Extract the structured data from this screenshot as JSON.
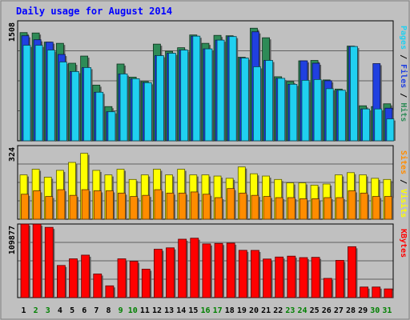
{
  "chart_data": [
    {
      "type": "bar",
      "title": "Daily usage for August 2014",
      "ylabel": "Pages / Files / Hits",
      "y_tick_label": "1508",
      "ylim": [
        0,
        1508
      ],
      "categories": [
        "1",
        "2",
        "3",
        "4",
        "5",
        "6",
        "7",
        "8",
        "9",
        "10",
        "11",
        "12",
        "13",
        "14",
        "15",
        "16",
        "17",
        "18",
        "19",
        "20",
        "21",
        "22",
        "23",
        "24",
        "25",
        "26",
        "27",
        "28",
        "29",
        "30",
        "31"
      ],
      "weekend_days": [
        "2",
        "3",
        "9",
        "10",
        "16",
        "17",
        "23",
        "24",
        "30",
        "31"
      ],
      "series": [
        {
          "name": "Hits",
          "color": "#2e8b57",
          "values": [
            1360,
            1355,
            1240,
            1225,
            975,
            1065,
            700,
            430,
            965,
            800,
            745,
            1215,
            1125,
            1170,
            1330,
            1225,
            1325,
            1320,
            1050,
            1415,
            1295,
            805,
            745,
            1005,
            1010,
            765,
            650,
            1190,
            440,
            430,
            465
          ]
        },
        {
          "name": "Files",
          "color": "#2040e0",
          "values": [
            1320,
            1270,
            1240,
            1085,
            870,
            920,
            610,
            365,
            840,
            780,
            730,
            1070,
            1100,
            1140,
            1315,
            1155,
            1265,
            1310,
            1040,
            1370,
            1010,
            785,
            710,
            1005,
            975,
            755,
            635,
            1185,
            400,
            970,
            410
          ]
        },
        {
          "name": "Pages",
          "color": "#20d0f0",
          "values": [
            1200,
            1200,
            1140,
            990,
            870,
            920,
            610,
            365,
            840,
            780,
            730,
            1070,
            1100,
            1140,
            1315,
            1155,
            1265,
            1310,
            1040,
            930,
            1010,
            785,
            710,
            760,
            770,
            655,
            635,
            1185,
            400,
            400,
            275
          ]
        }
      ]
    },
    {
      "type": "bar",
      "ylabel": "Sites / Visits",
      "y_tick_label": "324",
      "ylim": [
        0,
        324
      ],
      "series": [
        {
          "name": "Visits",
          "color": "#ffff00",
          "values": [
            195,
            220,
            185,
            215,
            250,
            290,
            215,
            195,
            220,
            175,
            195,
            220,
            195,
            220,
            195,
            195,
            190,
            180,
            230,
            200,
            190,
            175,
            160,
            160,
            150,
            155,
            195,
            205,
            195,
            180,
            175
          ]
        },
        {
          "name": "Sites",
          "color": "#ff8c00",
          "values": [
            110,
            125,
            100,
            130,
            105,
            130,
            125,
            125,
            115,
            100,
            105,
            130,
            115,
            115,
            120,
            110,
            95,
            135,
            115,
            105,
            100,
            95,
            95,
            90,
            90,
            95,
            95,
            125,
            115,
            100,
            100
          ]
        }
      ]
    },
    {
      "type": "bar",
      "ylabel": "KBytes",
      "y_tick_label": "109877",
      "ylim": [
        0,
        109877
      ],
      "series": [
        {
          "name": "KBytes",
          "color": "#ff0000",
          "values": [
            109800,
            109700,
            104900,
            48000,
            57900,
            63400,
            35300,
            17600,
            57900,
            54200,
            42500,
            72200,
            74300,
            87200,
            88700,
            80200,
            80900,
            81300,
            70600,
            70500,
            57600,
            60600,
            61900,
            59700,
            60100,
            28700,
            55600,
            76000,
            15800,
            15800,
            13000
          ]
        }
      ]
    }
  ]
}
